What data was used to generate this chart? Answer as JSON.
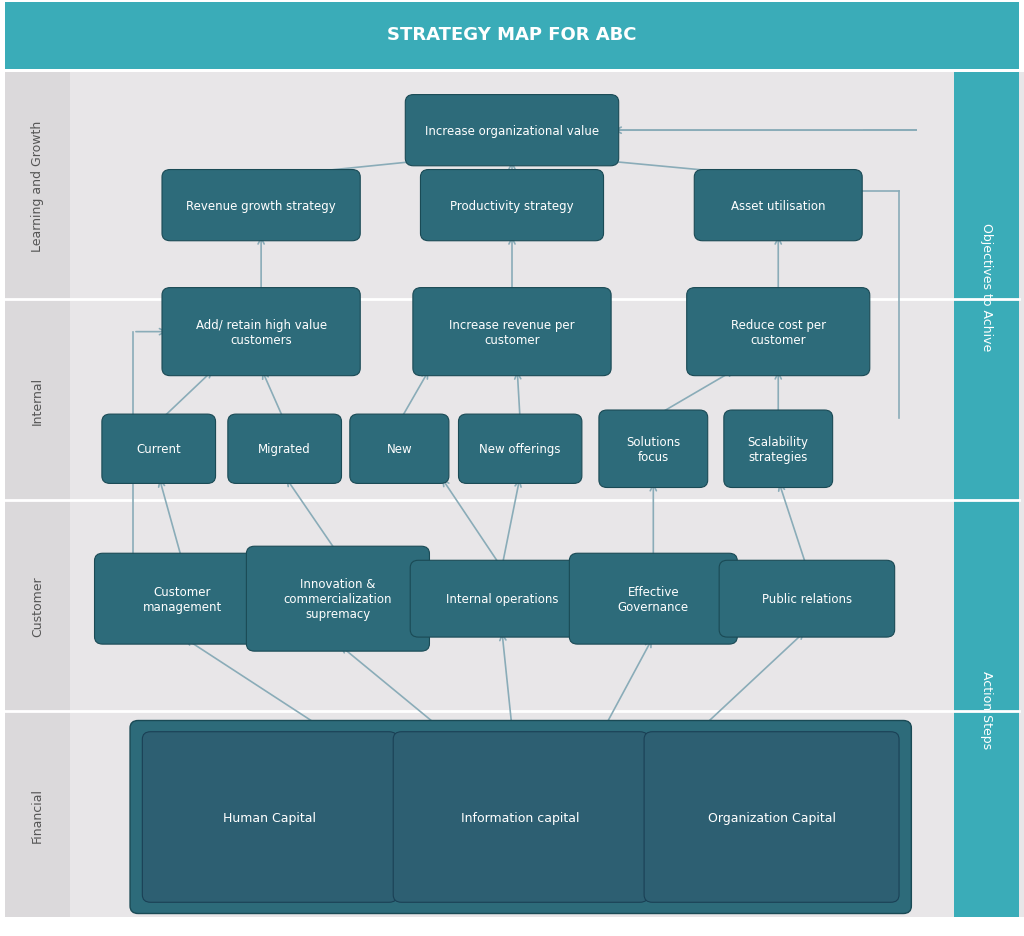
{
  "title": "STRATEGY MAP FOR ABC",
  "title_bg": "#3aacb8",
  "title_text_color": "#ffffff",
  "bg_color": "#ffffff",
  "panel_bg": "#e8e6e8",
  "left_col_bg": "#dbd9db",
  "teal_dark": "#2d6b7a",
  "teal_mid": "#3aacb8",
  "teal_box": "#2d6b7a",
  "teal_lg_outer": "#2d6b7a",
  "teal_lg_inner": "#2d5f72",
  "row_labels": [
    "Financial",
    "Customer",
    "Internal",
    "Learning and Growth"
  ],
  "right_labels": [
    "Objectives to Achive",
    "Action Steps"
  ],
  "arrow_color": "#8aacb8",
  "separator_color": "#ffffff"
}
